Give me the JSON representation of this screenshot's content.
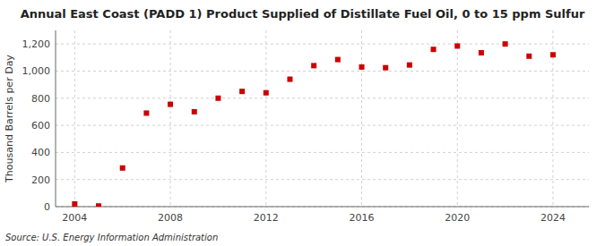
{
  "chart_data": {
    "type": "scatter",
    "title": "Annual East Coast (PADD 1) Product Supplied of Distillate Fuel Oil, 0 to 15 ppm Sulfur",
    "ylabel": "Thousand Barrels per Day",
    "annotations": [
      "Source: U.S. Energy Information Administration"
    ],
    "x": [
      2004,
      2005,
      2006,
      2007,
      2008,
      2009,
      2010,
      2011,
      2012,
      2013,
      2014,
      2015,
      2016,
      2017,
      2018,
      2019,
      2020,
      2021,
      2022,
      2023,
      2024
    ],
    "values": [
      20,
      5,
      285,
      690,
      755,
      700,
      800,
      850,
      840,
      940,
      1040,
      1085,
      1030,
      1025,
      1045,
      1160,
      1185,
      1135,
      1200,
      1110,
      1120
    ],
    "color": "#cc0000",
    "marker": "square",
    "xlim": [
      2003.2,
      2025.5
    ],
    "ylim": [
      0,
      1300
    ],
    "xticks": [
      2004,
      2008,
      2012,
      2016,
      2020,
      2024
    ],
    "yticks": [
      0,
      200,
      400,
      600,
      800,
      {
        "value": 1000,
        "label": "1,000"
      },
      {
        "value": 1200,
        "label": "1,200"
      }
    ],
    "grid": true
  }
}
